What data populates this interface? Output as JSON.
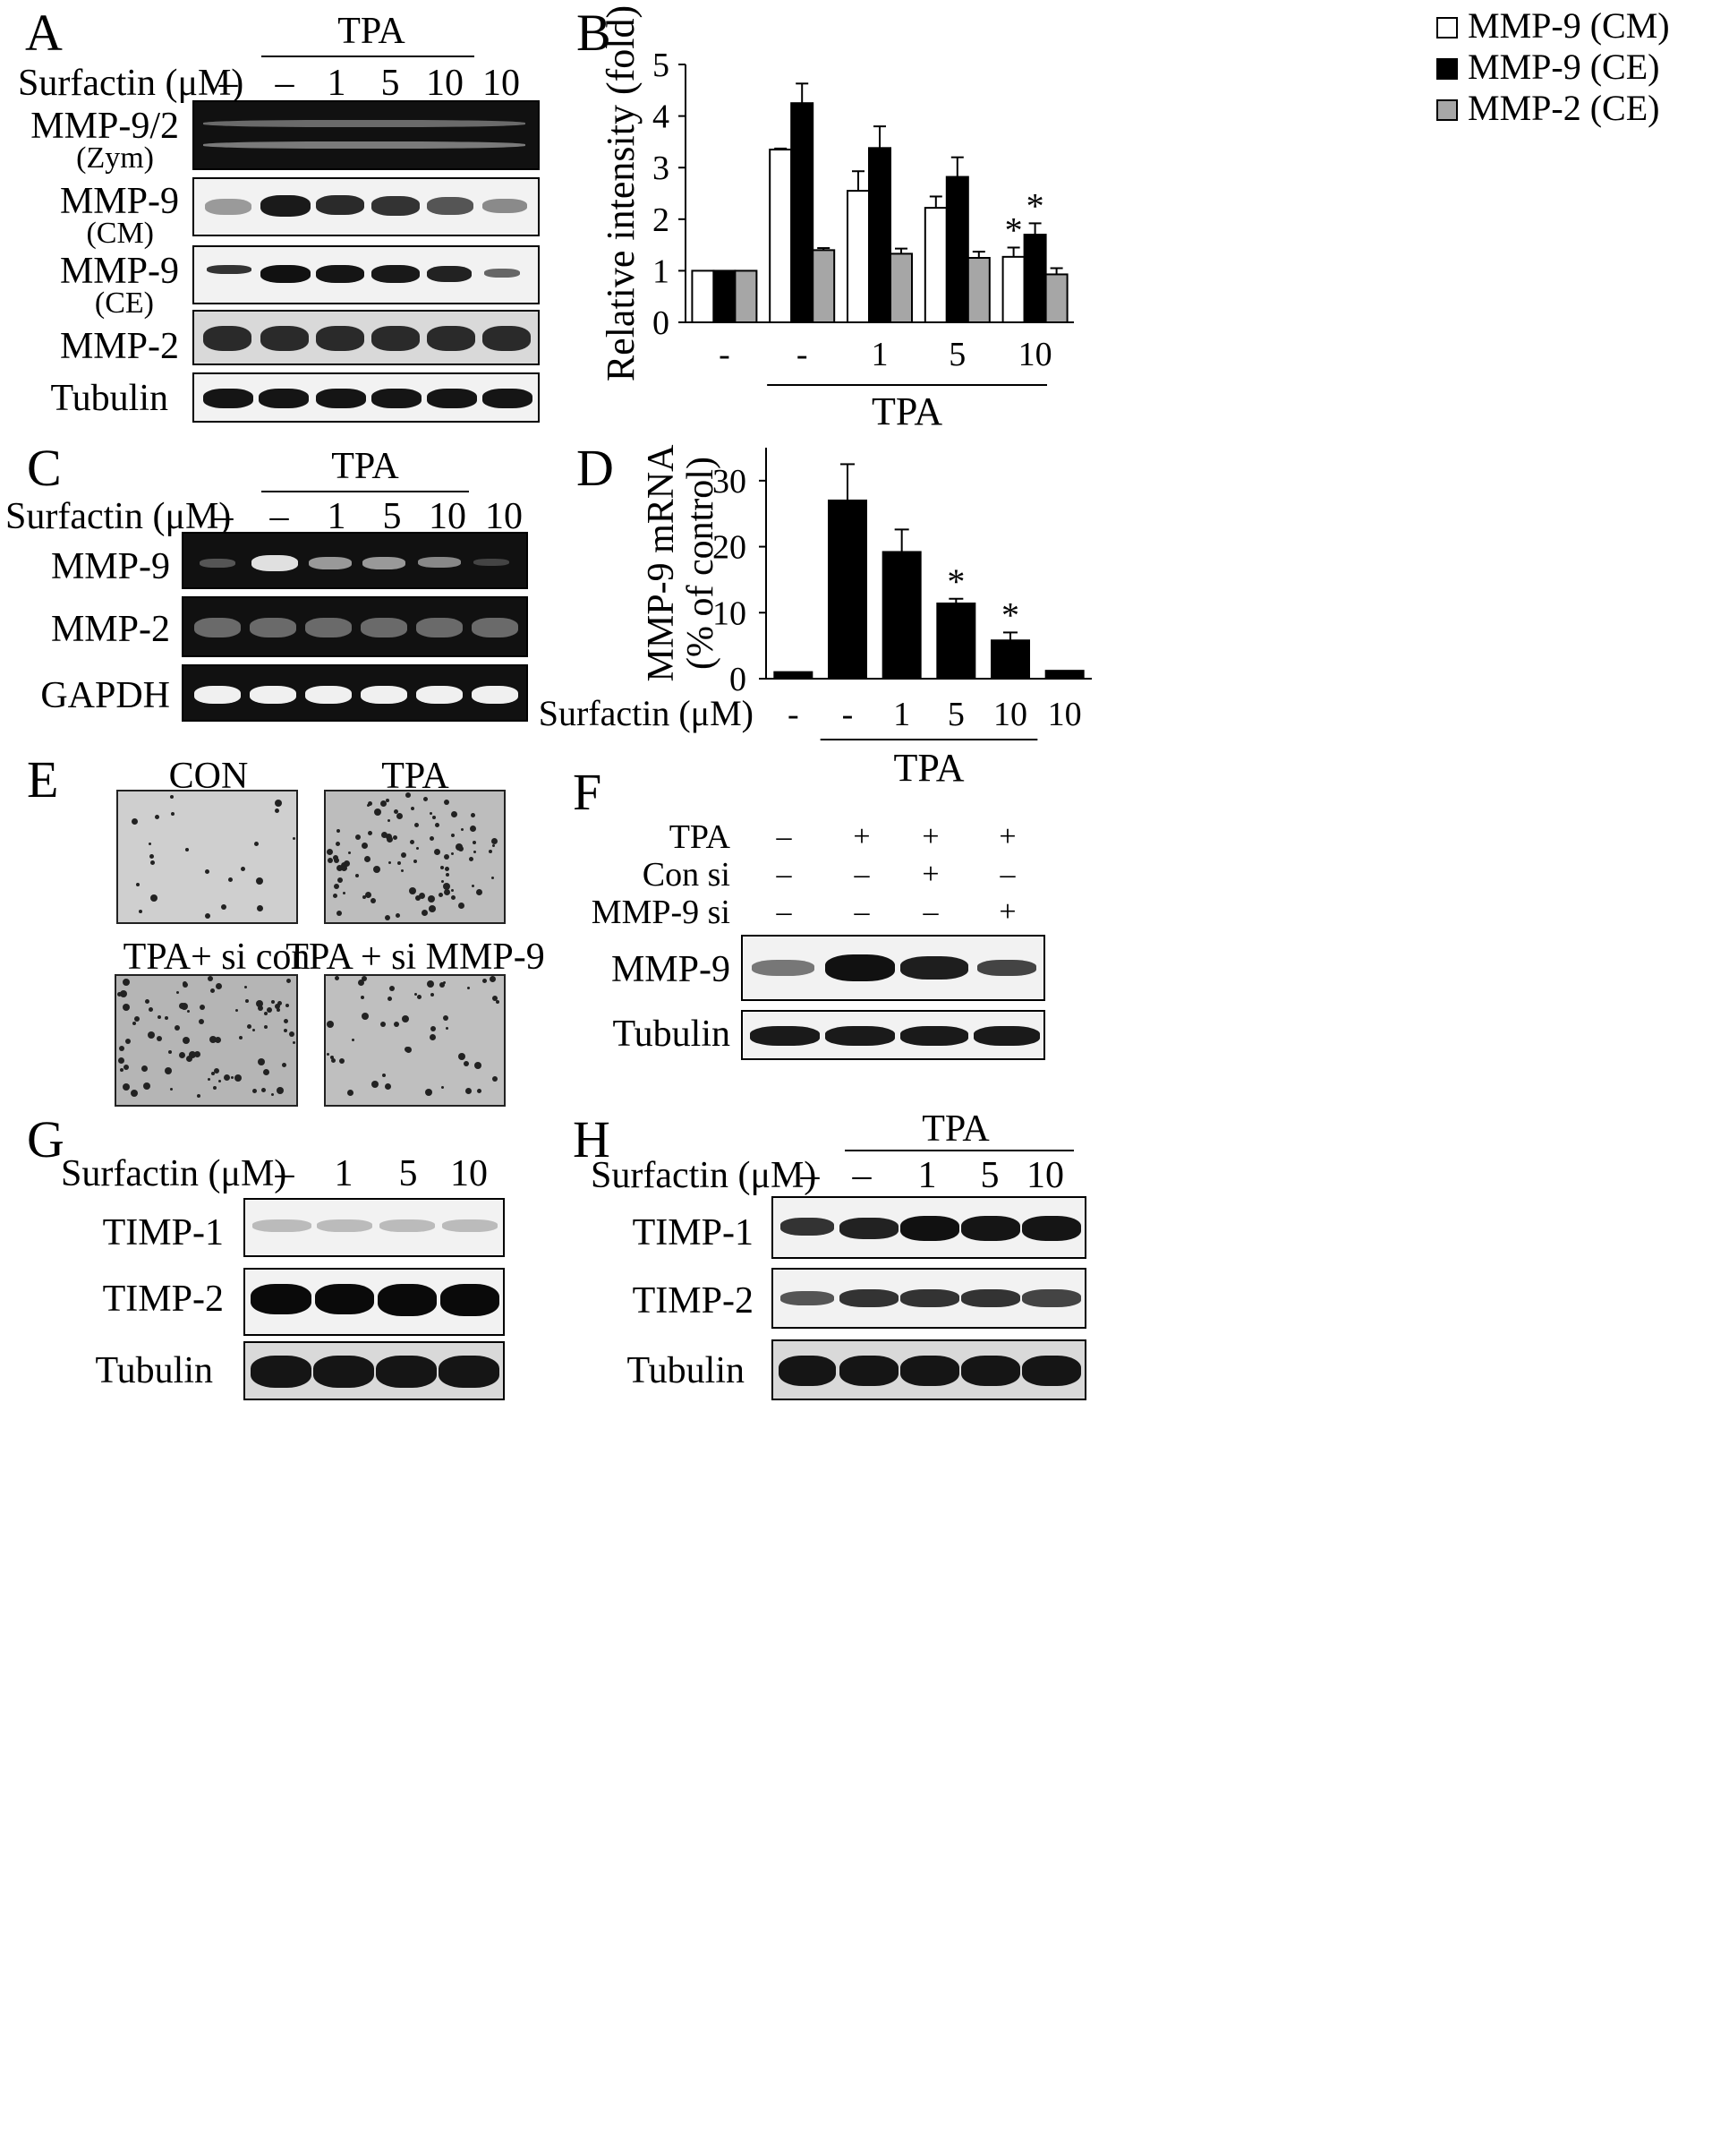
{
  "panels": {
    "A": {
      "letter": "A",
      "group_label": "TPA",
      "row_label": "Surfactin (μM)",
      "lanes": [
        "–",
        "–",
        "1",
        "5",
        "10",
        "10"
      ],
      "blots": [
        {
          "label": "MMP-9/2",
          "sub": "(Zym)"
        },
        {
          "label": "MMP-9",
          "sub": "(CM)"
        },
        {
          "label": "MMP-9",
          "sub": "(CE)"
        },
        {
          "label": "MMP-2",
          "sub": ""
        },
        {
          "label": "Tubulin",
          "sub": ""
        }
      ]
    },
    "B": {
      "letter": "B"
    },
    "C": {
      "letter": "C",
      "group_label": "TPA",
      "row_label": "Surfactin (μM)",
      "lanes": [
        "–",
        "–",
        "1",
        "5",
        "10",
        "10"
      ],
      "blots": [
        {
          "label": "MMP-9"
        },
        {
          "label": "MMP-2"
        },
        {
          "label": "GAPDH"
        }
      ]
    },
    "D": {
      "letter": "D",
      "row_label": "Surfactin (μM)"
    },
    "E": {
      "letter": "E",
      "images": [
        {
          "label": "CON"
        },
        {
          "label": "TPA"
        },
        {
          "label": "TPA+ si con"
        },
        {
          "label": "TPA + si MMP-9"
        }
      ]
    },
    "F": {
      "letter": "F",
      "conditions": [
        {
          "label": "TPA",
          "values": [
            "–",
            "+",
            "+",
            "+"
          ]
        },
        {
          "label": "Con si",
          "values": [
            "–",
            "–",
            "+",
            "–"
          ]
        },
        {
          "label": "MMP-9 si",
          "values": [
            "–",
            "–",
            "–",
            "+"
          ]
        }
      ],
      "blots": [
        {
          "label": "MMP-9"
        },
        {
          "label": "Tubulin"
        }
      ]
    },
    "G": {
      "letter": "G",
      "row_label": "Surfactin (μM)",
      "lanes": [
        "–",
        "1",
        "5",
        "10"
      ],
      "blots": [
        {
          "label": "TIMP-1"
        },
        {
          "label": "TIMP-2"
        },
        {
          "label": "Tubulin"
        }
      ]
    },
    "H": {
      "letter": "H",
      "group_label": "TPA",
      "row_label": "Surfactin (μM)",
      "lanes": [
        "–",
        "–",
        "1",
        "5",
        "10"
      ],
      "blots": [
        {
          "label": "TIMP-1"
        },
        {
          "label": "TIMP-2"
        },
        {
          "label": "Tubulin"
        }
      ]
    }
  },
  "chart_data": [
    {
      "panel": "B",
      "type": "bar",
      "ylabel": "Relative intensity (fold)",
      "xlabel": "",
      "ylim": [
        0,
        5
      ],
      "yticks": [
        0,
        1,
        2,
        3,
        4,
        5
      ],
      "categories": [
        "-",
        "-",
        "1",
        "5",
        "10"
      ],
      "group_label": "TPA",
      "legend_position": "top-right",
      "series": [
        {
          "name": "MMP-9 (CM)",
          "color": "#ffffff",
          "values": [
            1.0,
            3.35,
            2.55,
            2.22,
            1.27
          ],
          "errors": [
            0.0,
            0.02,
            0.38,
            0.22,
            0.18
          ]
        },
        {
          "name": "MMP-9 (CE)",
          "color": "#000000",
          "values": [
            1.0,
            4.25,
            3.38,
            2.82,
            1.7
          ],
          "errors": [
            0.0,
            0.38,
            0.42,
            0.38,
            0.22
          ]
        },
        {
          "name": "MMP-2 (CE)",
          "color": "#a6a6a6",
          "values": [
            1.0,
            1.4,
            1.33,
            1.25,
            0.93
          ],
          "errors": [
            0.0,
            0.04,
            0.1,
            0.12,
            0.12
          ]
        }
      ],
      "annotations": [
        {
          "category": "10",
          "series": "MMP-9 (CM)",
          "text": "*"
        },
        {
          "category": "10",
          "series": "MMP-9 (CE)",
          "text": "*"
        }
      ]
    },
    {
      "panel": "D",
      "type": "bar",
      "ylabel": "MMP-9 mRNA\n(% of control)",
      "xlabel": "Surfactin (μM)",
      "ylim": [
        0,
        35
      ],
      "yticks": [
        0,
        10,
        20,
        30
      ],
      "categories": [
        "-",
        "-",
        "1",
        "5",
        "10",
        "10"
      ],
      "group_label": "TPA",
      "series": [
        {
          "name": "",
          "color": "#000000",
          "values": [
            1.0,
            27.0,
            19.2,
            11.4,
            5.8,
            1.2
          ],
          "errors": [
            0.0,
            5.5,
            3.4,
            0.7,
            1.2,
            0.0
          ]
        }
      ],
      "annotations": [
        {
          "category_index": 3,
          "text": "*"
        },
        {
          "category_index": 4,
          "text": "*"
        }
      ]
    }
  ]
}
